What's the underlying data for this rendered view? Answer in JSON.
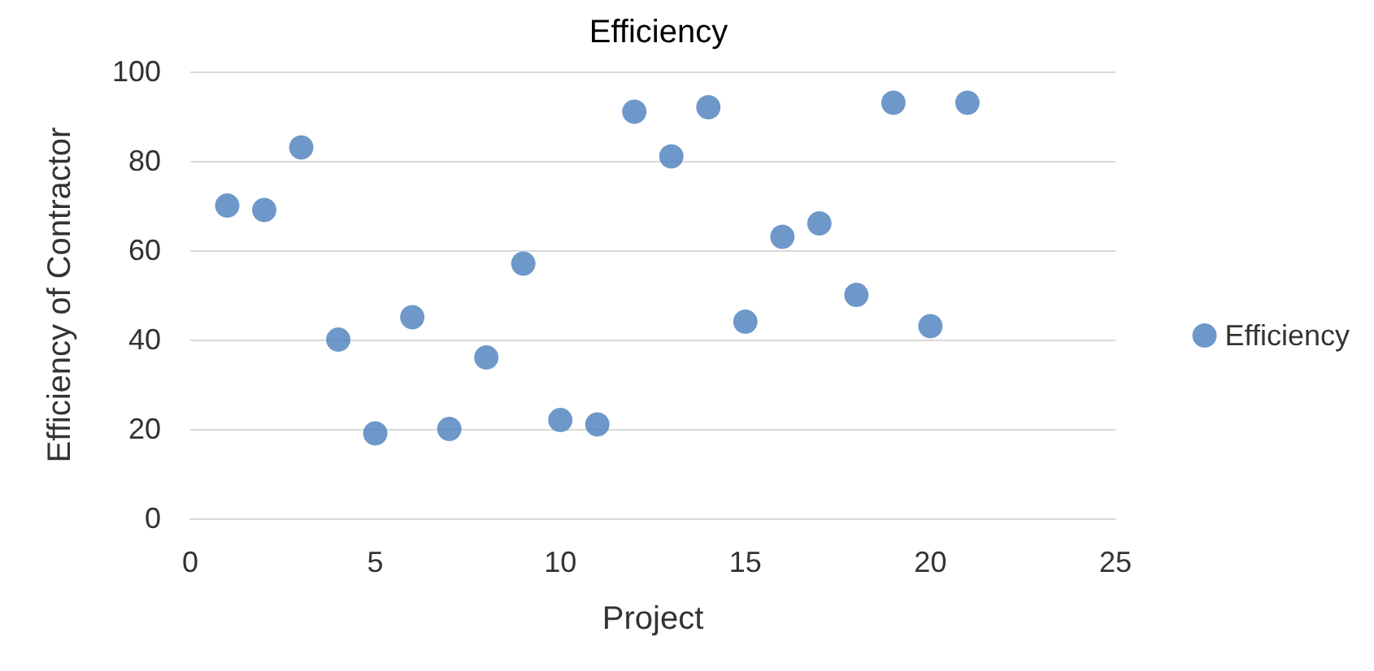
{
  "chart_data": {
    "type": "scatter",
    "title": "Efficiency",
    "xlabel": "Project",
    "ylabel": "Efficiency of Contractor",
    "x": [
      1,
      2,
      3,
      4,
      5,
      6,
      7,
      8,
      9,
      10,
      11,
      12,
      13,
      14,
      15,
      16,
      17,
      18,
      19,
      20,
      21
    ],
    "series": [
      {
        "name": "Efficiency",
        "color": "#4a7ebb",
        "values": [
          70,
          69,
          83,
          40,
          19,
          45,
          20,
          36,
          57,
          22,
          21,
          91,
          81,
          92,
          44,
          63,
          66,
          50,
          93,
          43,
          93
        ]
      }
    ],
    "xlim": [
      0,
      25
    ],
    "xticks": [
      0,
      5,
      10,
      15,
      20,
      25
    ],
    "ylim": [
      0,
      100
    ],
    "yticks": [
      0,
      20,
      40,
      60,
      80,
      100
    ],
    "grid": "y",
    "legend": "right",
    "marker": "circle"
  }
}
